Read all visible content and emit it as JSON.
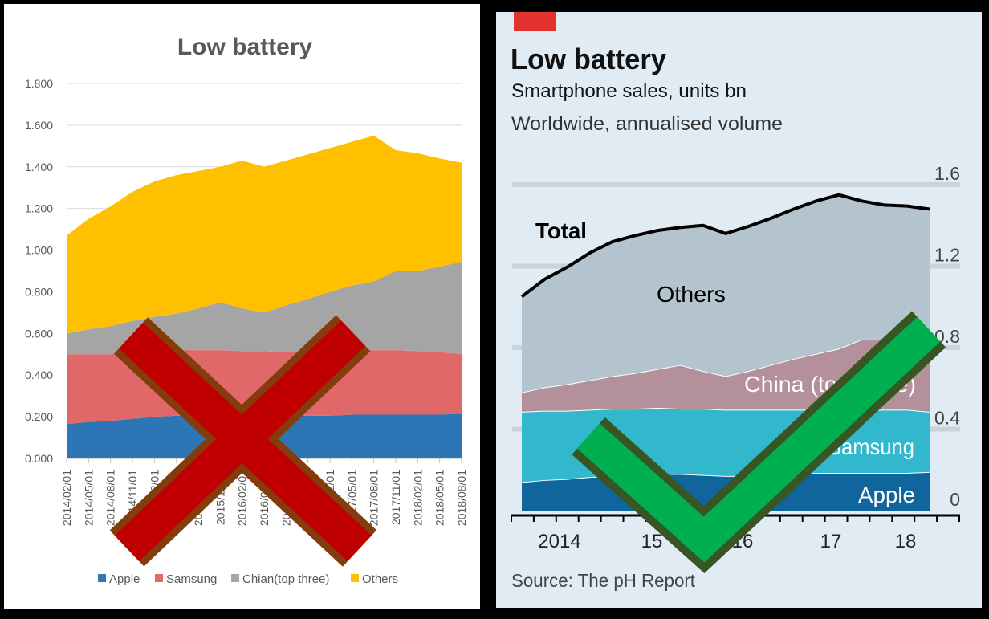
{
  "chart_data": [
    {
      "type": "area",
      "stacked": true,
      "title": "Low battery",
      "xlabel": "",
      "ylabel": "",
      "ylim": [
        0,
        1.8
      ],
      "grid": true,
      "legend": "bottom",
      "yticks": [
        "0.000",
        "0.200",
        "0.400",
        "0.600",
        "0.800",
        "1.000",
        "1.200",
        "1.400",
        "1.600",
        "1.800"
      ],
      "categories": [
        "2014/02/01",
        "2014/05/01",
        "2014/08/01",
        "2014/11/01",
        "2015/02/01",
        "2015/05/01",
        "2015/08/01",
        "2015/11/01",
        "2016/02/01",
        "2016/05/01",
        "2016/08/01",
        "2016/11/01",
        "2017/02/01",
        "2017/05/01",
        "2017/08/01",
        "2017/11/01",
        "2018/02/01",
        "2018/05/01",
        "2018/08/01"
      ],
      "series": [
        {
          "name": "Apple",
          "color": "#2e75b6",
          "values": [
            0.165,
            0.175,
            0.18,
            0.19,
            0.2,
            0.205,
            0.21,
            0.215,
            0.21,
            0.205,
            0.205,
            0.205,
            0.205,
            0.21,
            0.21,
            0.21,
            0.21,
            0.21,
            0.215
          ]
        },
        {
          "name": "Samsung",
          "color": "#e06868",
          "values": [
            0.335,
            0.325,
            0.32,
            0.32,
            0.315,
            0.315,
            0.31,
            0.305,
            0.305,
            0.31,
            0.305,
            0.31,
            0.315,
            0.31,
            0.31,
            0.31,
            0.305,
            0.3,
            0.285
          ]
        },
        {
          "name": "Chian(top three)",
          "color": "#a5a5a5",
          "values": [
            0.1,
            0.12,
            0.135,
            0.15,
            0.165,
            0.175,
            0.2,
            0.23,
            0.205,
            0.185,
            0.225,
            0.25,
            0.28,
            0.31,
            0.33,
            0.38,
            0.385,
            0.41,
            0.445
          ]
        },
        {
          "name": "Others",
          "color": "#ffc000",
          "values": [
            0.47,
            0.53,
            0.575,
            0.62,
            0.65,
            0.665,
            0.66,
            0.65,
            0.71,
            0.7,
            0.695,
            0.695,
            0.69,
            0.69,
            0.7,
            0.58,
            0.565,
            0.52,
            0.475
          ]
        }
      ],
      "overlay": {
        "icon": "cross-mark-icon",
        "fill": "#c00000",
        "outline": "#843c0c"
      }
    },
    {
      "type": "area",
      "stacked": true,
      "title": "Low battery",
      "subtitle": "Smartphone sales, units bn",
      "subtitle2": "Worldwide, annualised volume",
      "source": "Source: The pH Report",
      "ylim": [
        0,
        1.6
      ],
      "grid": true,
      "yaxis_side": "right",
      "yticks": [
        "0",
        "0.4",
        "0.8",
        "1.2",
        "1.6"
      ],
      "xticks": [
        "2014",
        "15",
        "16",
        "17",
        "18"
      ],
      "total_label": "Total",
      "accent": "#e3312d",
      "background": "#e1ebf4",
      "series": [
        {
          "name": "Apple",
          "color": "#10659d",
          "values": [
            0.14,
            0.15,
            0.155,
            0.165,
            0.17,
            0.175,
            0.18,
            0.18,
            0.175,
            0.17,
            0.17,
            0.175,
            0.18,
            0.185,
            0.185,
            0.185,
            0.185,
            0.185,
            0.19
          ]
        },
        {
          "name": "Samsung",
          "color": "#31b8cc",
          "values": [
            0.345,
            0.34,
            0.335,
            0.33,
            0.33,
            0.325,
            0.325,
            0.32,
            0.325,
            0.325,
            0.325,
            0.32,
            0.315,
            0.31,
            0.31,
            0.31,
            0.31,
            0.31,
            0.295
          ]
        },
        {
          "name": "China (top three)",
          "color": "#b3909a",
          "values": [
            0.095,
            0.115,
            0.13,
            0.145,
            0.16,
            0.175,
            0.19,
            0.215,
            0.185,
            0.165,
            0.19,
            0.22,
            0.25,
            0.275,
            0.3,
            0.345,
            0.345,
            0.365,
            0.395
          ]
        },
        {
          "name": "Others",
          "color": "#b4c4ce",
          "values": [
            0.47,
            0.53,
            0.575,
            0.625,
            0.66,
            0.675,
            0.68,
            0.675,
            0.715,
            0.7,
            0.71,
            0.72,
            0.735,
            0.75,
            0.755,
            0.68,
            0.66,
            0.635,
            0.6
          ]
        }
      ],
      "total": [
        1.05,
        1.135,
        1.195,
        1.265,
        1.32,
        1.35,
        1.375,
        1.39,
        1.4,
        1.36,
        1.395,
        1.435,
        1.48,
        1.52,
        1.55,
        1.52,
        1.5,
        1.495,
        1.48
      ],
      "overlay": {
        "icon": "check-mark-icon",
        "fill": "#00b050",
        "outline": "#375623"
      }
    }
  ]
}
